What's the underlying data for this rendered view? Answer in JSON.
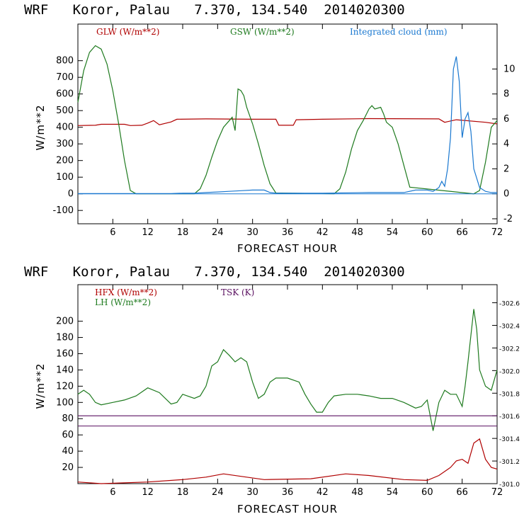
{
  "chart_data": [
    {
      "type": "line",
      "title": "WRF   Koror, Palau   7.370, 134.540  2014020300",
      "xlabel": "FORECAST HOUR",
      "ylabel": "W/m**2",
      "xlim": [
        0,
        72
      ],
      "ylim": [
        -180,
        1020
      ],
      "y2lim": [
        -2.4,
        13.6
      ],
      "xticks": [
        "6",
        "12",
        "18",
        "24",
        "30",
        "36",
        "42",
        "48",
        "54",
        "60",
        "66",
        "72"
      ],
      "yticks": [
        "-100",
        "0",
        "100",
        "200",
        "300",
        "400",
        "500",
        "600",
        "700",
        "800"
      ],
      "y2ticks": [
        "-2",
        "0",
        "2",
        "4",
        "6",
        "8",
        "10"
      ],
      "legend": [
        "GLW (W/m**2)",
        "GSW (W/m**2)",
        "Integrated cloud (mm)"
      ],
      "colors": {
        "glw": "#b00000",
        "gsw": "#1e7a1e",
        "cloud": "#1a78d0"
      },
      "series": [
        {
          "name": "GLW (W/m**2)",
          "axis": "left",
          "x": [
            0,
            3,
            4,
            8,
            9,
            11,
            12,
            13,
            14,
            16,
            17,
            22,
            30,
            34,
            34.5,
            37,
            37.5,
            42,
            50,
            62,
            62.5,
            63,
            65,
            70,
            72
          ],
          "y": [
            410,
            412,
            418,
            418,
            410,
            412,
            425,
            440,
            415,
            432,
            448,
            450,
            448,
            448,
            412,
            412,
            445,
            448,
            452,
            450,
            440,
            430,
            445,
            430,
            420
          ]
        },
        {
          "name": "GSW (W/m**2)",
          "axis": "left",
          "x": [
            0,
            1,
            2,
            3,
            4,
            5,
            6,
            7,
            8,
            9,
            10,
            20,
            21,
            22,
            23,
            24,
            25,
            26,
            26.5,
            27,
            27.5,
            28,
            28.5,
            29,
            30,
            31,
            32,
            33,
            34,
            44,
            45,
            46,
            47,
            48,
            49,
            50,
            50.5,
            51,
            52,
            52.5,
            53,
            54,
            55,
            56,
            57,
            68,
            69,
            70,
            71,
            72
          ],
          "y": [
            550,
            740,
            850,
            890,
            870,
            780,
            620,
            420,
            200,
            20,
            0,
            0,
            30,
            110,
            220,
            320,
            400,
            440,
            460,
            380,
            630,
            620,
            590,
            520,
            420,
            300,
            170,
            60,
            5,
            0,
            30,
            130,
            270,
            380,
            440,
            510,
            530,
            510,
            520,
            480,
            430,
            400,
            300,
            170,
            40,
            0,
            20,
            190,
            400,
            440
          ]
        },
        {
          "name": "Integrated cloud (mm)",
          "axis": "right",
          "x": [
            0,
            16,
            18,
            20,
            22,
            24,
            26,
            28,
            30,
            32,
            33,
            34,
            42,
            50,
            56,
            58,
            60,
            61,
            62,
            62.5,
            63,
            63.5,
            64,
            64.5,
            65,
            65.5,
            66,
            66.5,
            67,
            67.5,
            68,
            69,
            70,
            71,
            72
          ],
          "y": [
            0.02,
            0.02,
            0.05,
            0.05,
            0.1,
            0.15,
            0.2,
            0.25,
            0.3,
            0.3,
            0.1,
            0.05,
            0.05,
            0.1,
            0.1,
            0.3,
            0.3,
            0.2,
            0.5,
            1.0,
            0.6,
            2.0,
            4.5,
            10.0,
            11.0,
            9.0,
            4.5,
            6.0,
            6.5,
            5.0,
            2.0,
            0.5,
            0.2,
            0.1,
            0.1
          ]
        }
      ]
    },
    {
      "type": "line",
      "title": "WRF   Koror, Palau   7.370, 134.540  2014020300",
      "xlabel": "FORECAST HOUR",
      "ylabel": "W/m**2",
      "xlim": [
        0,
        72
      ],
      "ylim": [
        0,
        245
      ],
      "y2lim": [
        301.0,
        302.76
      ],
      "reference_line": 71,
      "xticks": [
        "6",
        "12",
        "18",
        "24",
        "30",
        "36",
        "42",
        "48",
        "54",
        "60",
        "66",
        "72"
      ],
      "yticks": [
        "20",
        "40",
        "60",
        "80",
        "100",
        "120",
        "140",
        "160",
        "180",
        "200"
      ],
      "y2ticks": [
        "301.0",
        "301.2",
        "301.4",
        "301.6",
        "301.8",
        "302.0",
        "302.2",
        "302.4",
        "302.6"
      ],
      "legend": [
        "HFX (W/m**2)",
        "LH (W/m**2)",
        "TSK (K)"
      ],
      "colors": {
        "hfx": "#b00000",
        "lh": "#1e7a1e",
        "tsk": "#5a1060"
      },
      "series": [
        {
          "name": "HFX (W/m**2)",
          "axis": "left",
          "x": [
            0,
            4,
            12,
            18,
            22,
            25,
            28,
            32,
            40,
            46,
            50,
            56,
            60,
            62,
            64,
            65,
            66,
            67,
            68,
            69,
            70,
            71,
            72
          ],
          "y": [
            2,
            0,
            2,
            5,
            8,
            12,
            9,
            5,
            6,
            12,
            10,
            5,
            4,
            10,
            20,
            28,
            30,
            25,
            50,
            55,
            30,
            20,
            18
          ]
        },
        {
          "name": "LH (W/m**2)",
          "axis": "left",
          "x": [
            0,
            1,
            2,
            3,
            4,
            6,
            8,
            10,
            12,
            14,
            16,
            17,
            18,
            20,
            21,
            22,
            23,
            24,
            25,
            26,
            27,
            28,
            29,
            30,
            31,
            32,
            33,
            34,
            36,
            38,
            39,
            40,
            41,
            42,
            43,
            44,
            46,
            48,
            50,
            52,
            54,
            56,
            58,
            59,
            60,
            61,
            62,
            63,
            64,
            65,
            66,
            66.5,
            67,
            68,
            68.5,
            69,
            70,
            71,
            72
          ],
          "y": [
            110,
            115,
            110,
            100,
            97,
            100,
            103,
            108,
            118,
            112,
            98,
            100,
            110,
            105,
            108,
            120,
            145,
            150,
            165,
            158,
            150,
            155,
            150,
            125,
            105,
            110,
            125,
            130,
            130,
            125,
            110,
            98,
            88,
            88,
            100,
            108,
            110,
            110,
            108,
            105,
            105,
            100,
            93,
            95,
            103,
            65,
            100,
            115,
            110,
            110,
            95,
            120,
            150,
            215,
            190,
            140,
            120,
            115,
            140
          ]
        },
        {
          "name": "TSK (K)",
          "axis": "right",
          "x": [
            0,
            72
          ],
          "y": [
            301.6,
            301.6
          ]
        }
      ]
    }
  ]
}
